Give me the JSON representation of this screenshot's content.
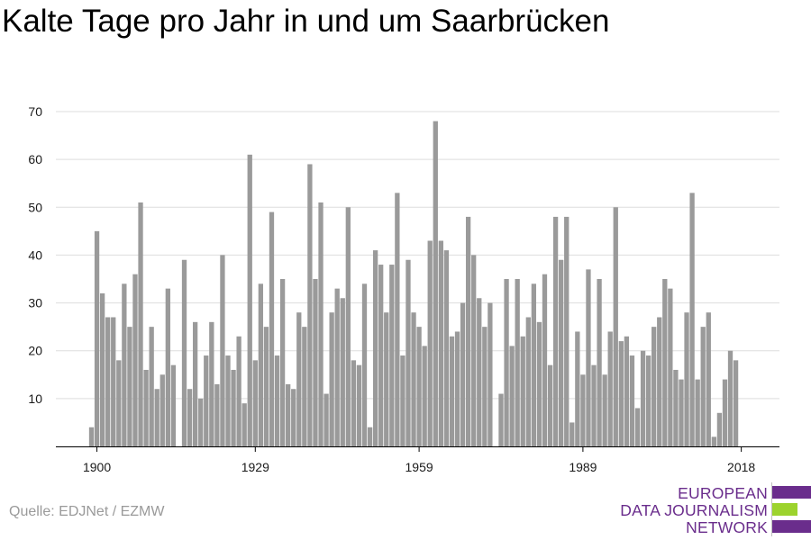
{
  "title": "Kalte Tage pro Jahr in und um Saarbrücken",
  "source": "Quelle: EDJNet / EZMW",
  "logo": {
    "lines": [
      "EUROPEAN",
      "DATA JOURNALISM",
      "NETWORK"
    ],
    "colors": {
      "primary": "#6a2d8c",
      "accent": "#9cd32d"
    }
  },
  "colors": {
    "bar": "#9a9a9a",
    "grid": "#dddddd",
    "axis": "#000000"
  },
  "chart_data": {
    "type": "bar",
    "title": "Kalte Tage pro Jahr in und um Saarbrücken",
    "xlabel": "",
    "ylabel": "",
    "x_start": 1899,
    "x_end": 2018,
    "xticks": [
      1900,
      1929,
      1959,
      1989,
      2018
    ],
    "yticks": [
      10,
      20,
      30,
      40,
      50,
      60,
      70
    ],
    "ylim": [
      0,
      70
    ],
    "grid": true,
    "values": [
      4,
      45,
      32,
      27,
      27,
      18,
      34,
      25,
      36,
      51,
      16,
      25,
      12,
      15,
      33,
      17,
      0,
      39,
      12,
      26,
      10,
      19,
      26,
      13,
      40,
      19,
      16,
      23,
      9,
      61,
      18,
      34,
      25,
      49,
      19,
      35,
      13,
      12,
      28,
      25,
      59,
      35,
      51,
      11,
      28,
      33,
      31,
      50,
      18,
      17,
      34,
      4,
      41,
      38,
      28,
      38,
      53,
      19,
      39,
      28,
      25,
      21,
      43,
      68,
      43,
      41,
      23,
      24,
      30,
      48,
      40,
      31,
      25,
      30,
      0,
      11,
      35,
      21,
      35,
      23,
      27,
      34,
      26,
      36,
      17,
      48,
      39,
      48,
      5,
      24,
      15,
      37,
      17,
      35,
      15,
      24,
      50,
      22,
      23,
      19,
      8,
      20,
      19,
      25,
      27,
      35,
      33,
      16,
      14,
      28,
      53,
      14,
      25,
      28,
      2,
      7,
      14,
      20,
      18
    ]
  }
}
